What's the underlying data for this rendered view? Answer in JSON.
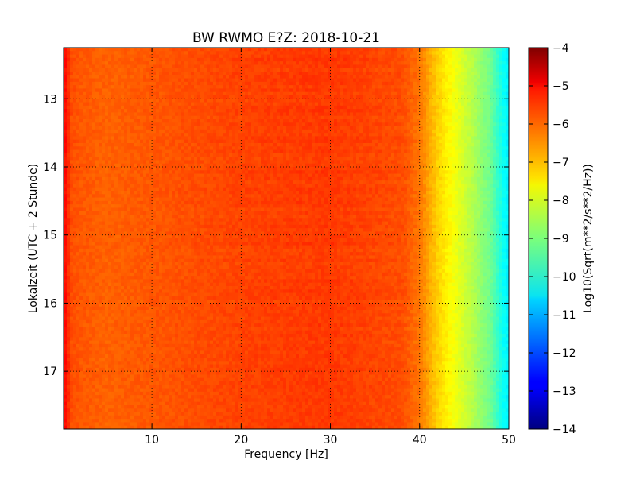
{
  "chart_data": {
    "type": "heatmap",
    "title": "BW RWMO E?Z: 2018-10-21",
    "xlabel": "Frequency [Hz]",
    "ylabel": "Lokalzeit (UTC + 2 Stunde)",
    "xlim": [
      0.1,
      50
    ],
    "ylim": [
      12.25,
      17.85
    ],
    "y_inverted": true,
    "x_ticks": [
      10,
      20,
      30,
      40,
      50
    ],
    "x_tick_labels": [
      "10",
      "20",
      "30",
      "40",
      "50"
    ],
    "y_ticks": [
      13,
      14,
      15,
      16,
      17
    ],
    "y_tick_labels": [
      "13",
      "14",
      "15",
      "16",
      "17"
    ],
    "grid": true,
    "colormap": "jet",
    "colorbar": {
      "label": "Log10(Sqrt(m**2/s**2/Hz))",
      "range": [
        -14,
        -4
      ],
      "ticks": [
        -4,
        -5,
        -6,
        -7,
        -8,
        -9,
        -10,
        -11,
        -12,
        -13,
        -14
      ],
      "tick_labels": [
        "−4",
        "−5",
        "−6",
        "−7",
        "−8",
        "−9",
        "−10",
        "−11",
        "−12",
        "−13",
        "−14"
      ]
    },
    "value_profile_by_frequency": {
      "frequency_hz": [
        0.1,
        0.5,
        1,
        2,
        5,
        10,
        20,
        30,
        38,
        40,
        42,
        44,
        46,
        48,
        49.5,
        50
      ],
      "log_psd": [
        -5.2,
        -5.6,
        -6.0,
        -6.1,
        -6.2,
        -6.1,
        -5.9,
        -5.8,
        -6.0,
        -6.4,
        -7.3,
        -7.9,
        -8.5,
        -9.2,
        -10.2,
        -10.4
      ]
    },
    "strong_bands": [
      {
        "time": 12.42,
        "value": -4.9
      },
      {
        "time": 12.55,
        "value": -5.1
      },
      {
        "time": 12.68,
        "value": -5.0
      },
      {
        "time": 12.82,
        "value": -5.3
      },
      {
        "time": 13.22,
        "value": -5.4
      },
      {
        "time": 13.35,
        "value": -5.2
      },
      {
        "time": 13.5,
        "value": -5.1
      },
      {
        "time": 13.65,
        "value": -5.3
      },
      {
        "time": 13.85,
        "value": -5.2
      },
      {
        "time": 14.05,
        "value": -5.4
      },
      {
        "time": 14.2,
        "value": -5.3
      },
      {
        "time": 14.35,
        "value": -5.4
      },
      {
        "time": 14.52,
        "value": -5.3
      },
      {
        "time": 14.68,
        "value": -4.7
      },
      {
        "time": 14.82,
        "value": -5.2
      },
      {
        "time": 15.1,
        "value": -5.5
      },
      {
        "time": 15.3,
        "value": -5.6
      },
      {
        "time": 15.53,
        "value": -4.8
      },
      {
        "time": 15.95,
        "value": -5.8
      },
      {
        "time": 16.6,
        "value": -5.9
      },
      {
        "time": 16.85,
        "value": -5.9
      }
    ]
  }
}
